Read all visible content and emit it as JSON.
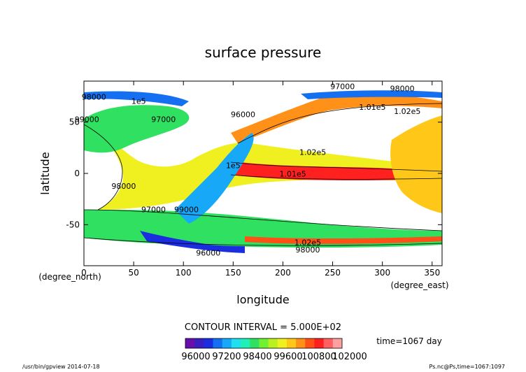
{
  "chart_data": {
    "type": "contour",
    "title": "surface pressure",
    "xlabel": "longitude",
    "ylabel": "latitude",
    "x_unit": "(degree_east)",
    "y_unit": "(degree_north)",
    "xlim": [
      0,
      360
    ],
    "ylim": [
      -90,
      90
    ],
    "x_ticks": [
      0,
      50,
      100,
      150,
      200,
      250,
      300,
      350
    ],
    "y_ticks": [
      -50,
      0,
      50
    ],
    "contour_interval_text": "CONTOUR INTERVAL = 5.000E+02",
    "contour_interval": 500,
    "levels_range": [
      96000,
      102000
    ],
    "colorbar_ticks": [
      "96000",
      "97200",
      "98400",
      "99600",
      "100800",
      "102000"
    ],
    "colorbar_colors": [
      "#6a0dad",
      "#3a1fc0",
      "#1a2ee0",
      "#1470f0",
      "#18a8f8",
      "#20e0f0",
      "#20f0b8",
      "#30e060",
      "#70f030",
      "#b8f020",
      "#f0f020",
      "#ffc818",
      "#ff9018",
      "#ff5018",
      "#ff2020",
      "#ff6060",
      "#ffa0a0"
    ],
    "contour_labels": [
      {
        "text": "98000",
        "lon": 10,
        "lat": 72
      },
      {
        "text": "1e5",
        "lon": 55,
        "lat": 68
      },
      {
        "text": "97000",
        "lon": 80,
        "lat": 50
      },
      {
        "text": "99000",
        "lon": 3,
        "lat": 50
      },
      {
        "text": "98000",
        "lon": 40,
        "lat": -15
      },
      {
        "text": "97000",
        "lon": 70,
        "lat": -38
      },
      {
        "text": "99000",
        "lon": 103,
        "lat": -38
      },
      {
        "text": "1e5",
        "lon": 150,
        "lat": 5
      },
      {
        "text": "96000",
        "lon": 160,
        "lat": 55
      },
      {
        "text": "97000",
        "lon": 260,
        "lat": 82
      },
      {
        "text": "98000",
        "lon": 320,
        "lat": 80
      },
      {
        "text": "1.01e5",
        "lon": 290,
        "lat": 62
      },
      {
        "text": "1.02e5",
        "lon": 325,
        "lat": 58
      },
      {
        "text": "1.02e5",
        "lon": 230,
        "lat": 18
      },
      {
        "text": "1.01e5",
        "lon": 210,
        "lat": -3
      },
      {
        "text": "1.02e5",
        "lon": 225,
        "lat": -70
      },
      {
        "text": "98000",
        "lon": 225,
        "lat": -77
      },
      {
        "text": "96000",
        "lon": 125,
        "lat": -80
      }
    ],
    "time_label": "time=1067 day",
    "footer_left": "/usr/bin/gpview  2014-07-18",
    "footer_right": "Ps.nc@Ps,time=1067:1097"
  }
}
